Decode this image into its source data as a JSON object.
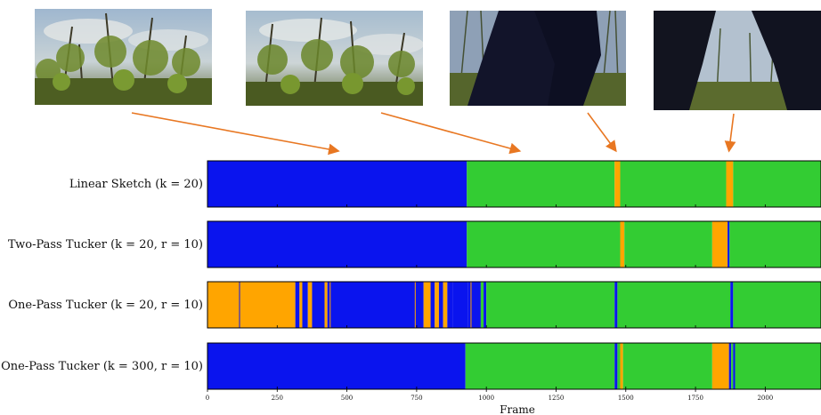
{
  "colors": {
    "cluster_blue": "#0a14ee",
    "cluster_green": "#33cc33",
    "cluster_orange": "#ffa500",
    "arrow": "#e87722"
  },
  "photos": [
    {
      "scene": "forest-canopy"
    },
    {
      "scene": "forest-canopy"
    },
    {
      "scene": "dark-legs-closeup"
    },
    {
      "scene": "dark-legs-wide"
    }
  ],
  "chart_data": {
    "type": "heatmap",
    "xlabel": "Frame",
    "xlim": [
      0,
      2200
    ],
    "xticks": [
      0,
      250,
      500,
      750,
      1000,
      1250,
      1500,
      1750,
      2000
    ],
    "rows": [
      {
        "label": "Linear Sketch (k = 20)",
        "segments": [
          {
            "start": 0,
            "end": 930,
            "cluster": "blue"
          },
          {
            "start": 930,
            "end": 1460,
            "cluster": "green"
          },
          {
            "start": 1460,
            "end": 1480,
            "cluster": "orange"
          },
          {
            "start": 1480,
            "end": 1860,
            "cluster": "green"
          },
          {
            "start": 1860,
            "end": 1885,
            "cluster": "orange"
          },
          {
            "start": 1885,
            "end": 2200,
            "cluster": "green"
          }
        ]
      },
      {
        "label": "Two-Pass Tucker (k = 20, r = 10)",
        "segments": [
          {
            "start": 0,
            "end": 930,
            "cluster": "blue"
          },
          {
            "start": 930,
            "end": 1480,
            "cluster": "green"
          },
          {
            "start": 1480,
            "end": 1495,
            "cluster": "orange"
          },
          {
            "start": 1495,
            "end": 1810,
            "cluster": "green"
          },
          {
            "start": 1810,
            "end": 1865,
            "cluster": "orange"
          },
          {
            "start": 1865,
            "end": 1872,
            "cluster": "blue"
          },
          {
            "start": 1872,
            "end": 2200,
            "cluster": "green"
          }
        ]
      },
      {
        "label": "One-Pass Tucker (k = 20, r = 10)",
        "segments": [
          {
            "start": 0,
            "end": 315,
            "cluster": "orange"
          },
          {
            "start": 315,
            "end": 330,
            "cluster": "blue"
          },
          {
            "start": 330,
            "end": 340,
            "cluster": "orange"
          },
          {
            "start": 340,
            "end": 360,
            "cluster": "blue"
          },
          {
            "start": 360,
            "end": 375,
            "cluster": "orange"
          },
          {
            "start": 375,
            "end": 420,
            "cluster": "blue"
          },
          {
            "start": 420,
            "end": 430,
            "cluster": "orange"
          },
          {
            "start": 430,
            "end": 775,
            "cluster": "blue"
          },
          {
            "start": 775,
            "end": 800,
            "cluster": "orange"
          },
          {
            "start": 800,
            "end": 815,
            "cluster": "blue"
          },
          {
            "start": 815,
            "end": 830,
            "cluster": "orange"
          },
          {
            "start": 830,
            "end": 845,
            "cluster": "blue"
          },
          {
            "start": 845,
            "end": 860,
            "cluster": "orange"
          },
          {
            "start": 860,
            "end": 880,
            "cluster": "blue"
          },
          {
            "start": 880,
            "end": 935,
            "cluster": "blue"
          },
          {
            "start": 935,
            "end": 980,
            "cluster": "blue"
          },
          {
            "start": 980,
            "end": 990,
            "cluster": "green"
          },
          {
            "start": 990,
            "end": 1000,
            "cluster": "blue"
          },
          {
            "start": 1000,
            "end": 1460,
            "cluster": "green"
          },
          {
            "start": 1460,
            "end": 1470,
            "cluster": "blue"
          },
          {
            "start": 1470,
            "end": 1875,
            "cluster": "green"
          },
          {
            "start": 1875,
            "end": 1885,
            "cluster": "blue"
          },
          {
            "start": 1885,
            "end": 2200,
            "cluster": "green"
          }
        ]
      },
      {
        "label": "One-Pass Tucker (k = 300, r = 10)",
        "segments": [
          {
            "start": 0,
            "end": 925,
            "cluster": "blue"
          },
          {
            "start": 925,
            "end": 1460,
            "cluster": "green"
          },
          {
            "start": 1460,
            "end": 1470,
            "cluster": "blue"
          },
          {
            "start": 1470,
            "end": 1480,
            "cluster": "green"
          },
          {
            "start": 1480,
            "end": 1490,
            "cluster": "orange"
          },
          {
            "start": 1490,
            "end": 1810,
            "cluster": "green"
          },
          {
            "start": 1810,
            "end": 1870,
            "cluster": "orange"
          },
          {
            "start": 1870,
            "end": 1878,
            "cluster": "blue"
          },
          {
            "start": 1878,
            "end": 1885,
            "cluster": "green"
          },
          {
            "start": 1885,
            "end": 1892,
            "cluster": "blue"
          },
          {
            "start": 1892,
            "end": 2200,
            "cluster": "green"
          }
        ]
      }
    ],
    "thin_lines": [
      {
        "row": 2,
        "frame": 115,
        "cluster": "blue"
      },
      {
        "row": 2,
        "frame": 440,
        "cluster": "orange"
      },
      {
        "row": 2,
        "frame": 745,
        "cluster": "orange"
      },
      {
        "row": 2,
        "frame": 945,
        "cluster": "orange"
      },
      {
        "row": 2,
        "frame": 1870,
        "cluster": "green"
      }
    ],
    "arrows": [
      {
        "photo": 0,
        "frame": 470,
        "row": 0
      },
      {
        "photo": 1,
        "frame": 1120,
        "row": 0
      },
      {
        "photo": 2,
        "frame": 1465,
        "row": 0
      },
      {
        "photo": 3,
        "frame": 1870,
        "row": 0
      }
    ]
  }
}
